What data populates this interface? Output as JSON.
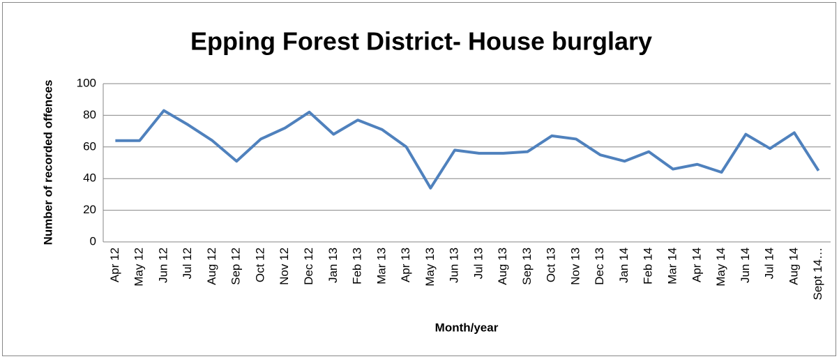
{
  "chart_data": {
    "type": "line",
    "title": "Epping Forest District- House burglary",
    "x_label": "Month/year",
    "y_label": "Number of recorded offences",
    "categories": [
      "Apr 12",
      "May 12",
      "Jun 12",
      "Jul 12",
      "Aug 12",
      "Sep 12",
      "Oct 12",
      "Nov 12",
      "Dec 12",
      "Jan 13",
      "Feb 13",
      "Mar 13",
      "Apr 13",
      "May 13",
      "Jun 13",
      "Jul 13",
      "Aug 13",
      "Sep 13",
      "Oct 13",
      "Nov 13",
      "Dec 13",
      "Jan 14",
      "Feb 14",
      "Mar 14",
      "Apr 14",
      "May 14",
      "Jun 14",
      "Jul 14",
      "Aug 14",
      "Sept 14…"
    ],
    "values": [
      64,
      64,
      83,
      74,
      64,
      51,
      65,
      72,
      82,
      68,
      77,
      71,
      60,
      34,
      58,
      56,
      56,
      57,
      67,
      65,
      55,
      51,
      57,
      46,
      49,
      44,
      68,
      59,
      69,
      45
    ],
    "color": "#4f81bd",
    "ylim": [
      0,
      100
    ],
    "yticks": [
      0,
      20,
      40,
      60,
      80,
      100
    ],
    "grid": true
  }
}
